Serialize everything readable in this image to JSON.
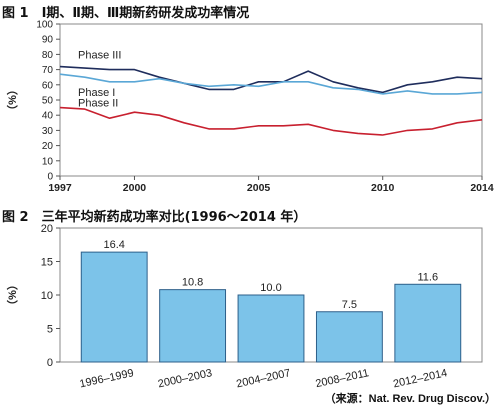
{
  "figure1": {
    "title": "图 1　Ⅰ期、Ⅱ期、Ⅲ期新药研发成功率情况",
    "chart_data": {
      "type": "line",
      "ylabel": "（%）",
      "ylim": [
        0,
        100
      ],
      "yticks": [
        0,
        10,
        20,
        30,
        40,
        50,
        60,
        70,
        80,
        90,
        100
      ],
      "xlim": [
        1997,
        2014
      ],
      "xticks": [
        1997,
        2000,
        2005,
        2010,
        2014
      ],
      "grid": false,
      "x": [
        1997,
        1998,
        1999,
        2000,
        2001,
        2002,
        2003,
        2004,
        2005,
        2006,
        2007,
        2008,
        2009,
        2010,
        2011,
        2012,
        2013,
        2014
      ],
      "series": [
        {
          "name": "Phase III",
          "color": "#1f2d5c",
          "values": [
            72,
            71,
            70,
            70,
            65,
            61,
            57,
            57,
            62,
            62,
            69,
            62,
            58,
            55,
            60,
            62,
            65,
            64
          ]
        },
        {
          "name": "Phase I",
          "color": "#5aa7d6",
          "values": [
            67,
            65,
            62,
            62,
            64,
            61,
            59,
            60,
            59,
            62,
            62,
            58,
            57,
            54,
            56,
            54,
            54,
            55
          ]
        },
        {
          "name": "Phase II",
          "color": "#c8202f",
          "values": [
            45,
            44,
            38,
            42,
            40,
            35,
            31,
            31,
            33,
            33,
            34,
            30,
            28,
            27,
            30,
            31,
            35,
            37
          ]
        }
      ]
    }
  },
  "figure2": {
    "title": "图 2　三年平均新药成功率对比(1996～2014 年）",
    "chart_data": {
      "type": "bar",
      "ylabel": "（%）",
      "ylim": [
        0,
        20
      ],
      "yticks": [
        0,
        5,
        10,
        15,
        20
      ],
      "categories": [
        "1996–1999",
        "2000–2003",
        "2004–2007",
        "2008–2011",
        "2012–2014"
      ],
      "values": [
        16.4,
        10.8,
        10.0,
        7.5,
        11.6
      ],
      "labels": [
        "16.4",
        "10.8",
        "10.0",
        "7.5",
        "11.6"
      ],
      "bar_color": "#7cc3e9"
    }
  },
  "source": "（来源：Nat. Rev. Drug Discov.）"
}
